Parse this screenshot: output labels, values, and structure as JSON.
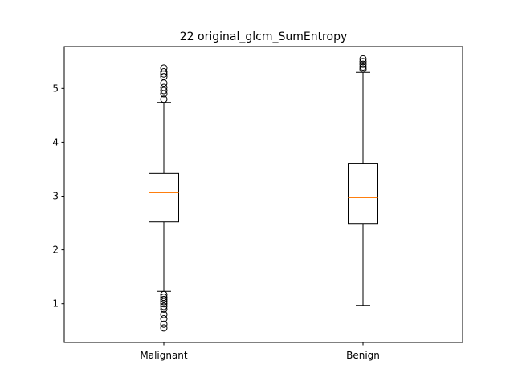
{
  "chart_data": {
    "type": "box",
    "title": "22 original_glcm_SumEntropy",
    "xlabel": "",
    "ylabel": "",
    "categories": [
      "Malignant",
      "Benign"
    ],
    "ylim": [
      0.28,
      5.78
    ],
    "yticks": [
      1,
      2,
      3,
      4,
      5
    ],
    "grid": false,
    "series": [
      {
        "category": "Malignant",
        "whisker_low": 1.23,
        "q1": 2.52,
        "median": 3.06,
        "q3": 3.42,
        "whisker_high": 4.74,
        "outliers": [
          4.8,
          4.9,
          4.96,
          5.02,
          5.1,
          5.22,
          5.27,
          5.31,
          5.38,
          0.55,
          0.62,
          0.72,
          0.8,
          0.9,
          0.95,
          1.0,
          1.04,
          1.08,
          1.12,
          1.17
        ]
      },
      {
        "category": "Benign",
        "whisker_low": 0.97,
        "q1": 2.49,
        "median": 2.97,
        "q3": 3.61,
        "whisker_high": 5.3,
        "outliers": [
          5.36,
          5.4,
          5.45,
          5.5,
          5.55
        ]
      }
    ],
    "colors": {
      "box": "#000000",
      "median": "#ff7f0e",
      "background": "#ffffff"
    }
  }
}
